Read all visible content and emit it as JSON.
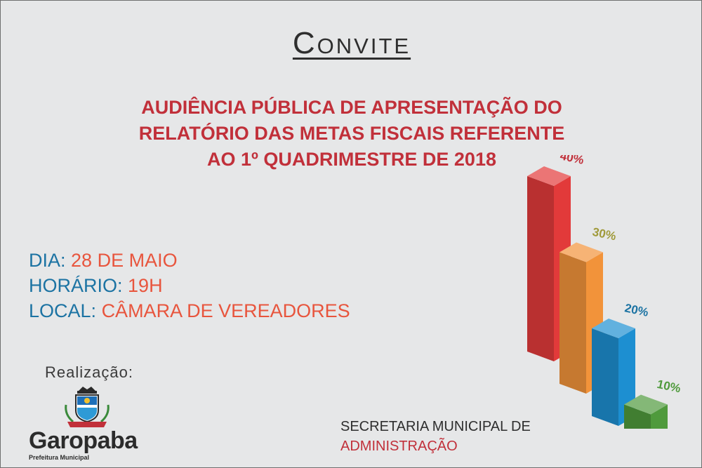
{
  "title": "Convite",
  "heading": {
    "line1": "AUDIÊNCIA PÚBLICA DE APRESENTAÇÃO DO",
    "line2": "RELATÓRIO DAS METAS FISCAIS REFERENTE",
    "line3": "AO 1º QUADRIMESTRE DE 2018"
  },
  "details": {
    "dia_label": "DIA:",
    "dia_value": "28 DE MAIO",
    "horario_label": "HORÁRIO:",
    "horario_value": "19H",
    "local_label": "LOCAL:",
    "local_value": "CÂMARA DE VEREADORES"
  },
  "realizacao": "Realização:",
  "brand": {
    "name": "Garopaba",
    "sub": "Prefeitura Municipal"
  },
  "secretaria": {
    "line1": "SECRETARIA MUNICIPAL DE",
    "line2": "ADMINISTRAÇÃO"
  },
  "chart_data": {
    "type": "bar",
    "values": [
      40,
      30,
      20,
      10
    ],
    "labels": [
      "40%",
      "30%",
      "20%",
      "10%"
    ],
    "colors": [
      "#e23a3a",
      "#f2933a",
      "#1d8fd1",
      "#4f9a3c"
    ],
    "label_colors": [
      "#c1303a",
      "#a09a3a",
      "#1c73a3",
      "#4f9a3c"
    ]
  }
}
